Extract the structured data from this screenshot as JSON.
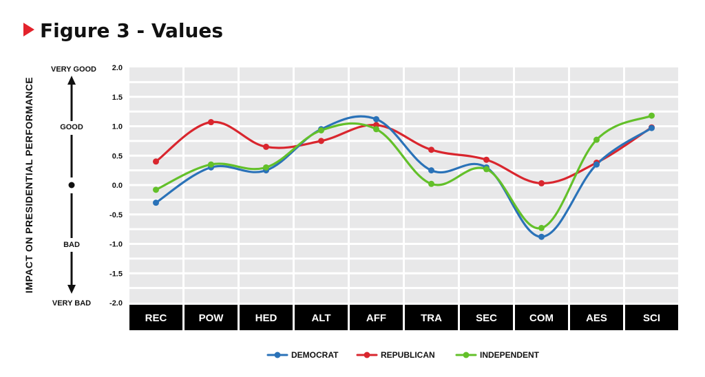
{
  "page": {
    "title": "Figure 3 - Values"
  },
  "colors": {
    "marker": "#e3222b",
    "panel": "#e8e8e9",
    "category_bg": "#000000"
  },
  "axis_qualifiers": {
    "very_good": "VERY GOOD",
    "good": "GOOD",
    "bad": "BAD",
    "very_bad": "VERY BAD"
  },
  "chart_data": {
    "type": "line",
    "title": "Figure 3 - Values",
    "xlabel": "",
    "ylabel": "IMPACT ON PRESIDENTIAL PERFORMANCE",
    "ylim": [
      -2.0,
      2.0
    ],
    "yticks": [
      "2.0",
      "1.5",
      "1.0",
      "0.5",
      "0.0",
      "-0.5",
      "-1.0",
      "-1.5",
      "-2.0"
    ],
    "categories": [
      "REC",
      "POW",
      "HED",
      "ALT",
      "AFF",
      "TRA",
      "SEC",
      "COM",
      "AES",
      "SCI"
    ],
    "grid": true,
    "legend_position": "bottom-center",
    "series": [
      {
        "name": "DEMOCRAT",
        "color": "#2a72b8",
        "values": [
          -0.3,
          0.3,
          0.25,
          0.95,
          1.12,
          0.25,
          0.3,
          -0.88,
          0.35,
          0.97
        ]
      },
      {
        "name": "REPUBLICAN",
        "color": "#d9262e",
        "values": [
          0.4,
          1.07,
          0.65,
          0.75,
          1.02,
          0.6,
          0.43,
          0.03,
          0.38,
          0.98
        ]
      },
      {
        "name": "INDEPENDENT",
        "color": "#63c02a",
        "values": [
          -0.08,
          0.35,
          0.3,
          0.93,
          0.95,
          0.02,
          0.27,
          -0.73,
          0.77,
          1.18
        ]
      }
    ]
  }
}
